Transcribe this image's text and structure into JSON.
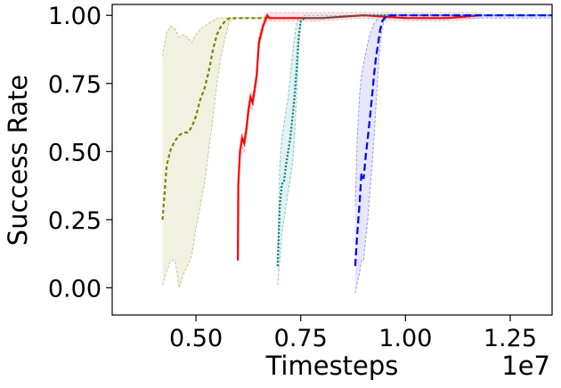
{
  "chart_data": {
    "type": "line",
    "xlabel": "Timesteps",
    "ylabel": "Success Rate",
    "x_scale_label": "1e7",
    "xlim": [
      0.3,
      1.35
    ],
    "ylim": [
      -0.1,
      1.04
    ],
    "x_ticks": [
      0.5,
      0.75,
      1.0,
      1.25
    ],
    "x_tick_labels": [
      "0.50",
      "0.75",
      "1.00",
      "1.25"
    ],
    "y_ticks": [
      0.0,
      0.25,
      0.5,
      0.75,
      1.0
    ],
    "y_tick_labels": [
      "0.00",
      "0.25",
      "0.50",
      "0.75",
      "1.00"
    ],
    "grid": false,
    "series": [
      {
        "color": "#808000",
        "fill": "#efefdc",
        "band_color": "#b8b870",
        "dash": "4,3",
        "x": [
          0.42,
          0.43,
          0.44,
          0.45,
          0.46,
          0.47,
          0.48,
          0.49,
          0.5,
          0.51,
          0.52,
          0.53,
          0.54,
          0.55,
          0.56,
          0.57,
          0.58,
          0.6,
          0.64,
          0.68
        ],
        "y": [
          0.25,
          0.45,
          0.51,
          0.54,
          0.56,
          0.57,
          0.57,
          0.59,
          0.63,
          0.69,
          0.73,
          0.79,
          0.87,
          0.93,
          0.96,
          0.98,
          0.99,
          0.99,
          0.99,
          0.99
        ],
        "low": [
          0.01,
          0.06,
          0.1,
          0.1,
          0.0,
          0.05,
          0.08,
          0.12,
          0.22,
          0.3,
          0.38,
          0.5,
          0.62,
          0.75,
          0.85,
          0.92,
          0.98,
          0.99,
          0.99,
          0.99
        ],
        "high": [
          0.85,
          0.94,
          0.96,
          0.95,
          0.92,
          0.93,
          0.92,
          0.9,
          0.93,
          0.95,
          0.96,
          0.97,
          0.98,
          0.99,
          0.99,
          0.99,
          0.99,
          0.99,
          0.99,
          0.99
        ]
      },
      {
        "color": "#ff0000",
        "fill": "#fde2e2",
        "band_color": "#f4a0a0",
        "dash": "",
        "x": [
          0.6,
          0.601,
          0.605,
          0.61,
          0.615,
          0.62,
          0.625,
          0.63,
          0.635,
          0.64,
          0.645,
          0.65,
          0.655,
          0.66,
          0.665,
          0.67,
          0.675,
          0.68,
          0.7,
          0.75,
          0.8,
          0.9,
          1.0,
          1.1,
          1.18
        ],
        "y": [
          0.1,
          0.38,
          0.5,
          0.55,
          0.53,
          0.58,
          0.65,
          0.7,
          0.68,
          0.73,
          0.78,
          0.9,
          0.93,
          0.96,
          0.98,
          1.0,
          0.99,
          0.99,
          0.99,
          0.99,
          0.99,
          1.0,
          0.99,
          0.99,
          1.0
        ],
        "low": [
          0.1,
          0.36,
          0.48,
          0.52,
          0.5,
          0.55,
          0.62,
          0.67,
          0.65,
          0.7,
          0.75,
          0.87,
          0.91,
          0.95,
          0.97,
          0.98,
          0.98,
          0.98,
          0.98,
          0.98,
          0.98,
          0.99,
          0.98,
          0.98,
          0.99
        ],
        "high": [
          0.1,
          0.4,
          0.52,
          0.57,
          0.55,
          0.6,
          0.67,
          0.72,
          0.7,
          0.75,
          0.8,
          0.92,
          0.95,
          0.98,
          1.0,
          1.01,
          1.01,
          1.01,
          1.01,
          1.01,
          1.01,
          1.01,
          1.01,
          1.01,
          1.01
        ]
      },
      {
        "color": "#008080",
        "fill": "#dcf0ee",
        "band_color": "#70b8b8",
        "dash": "2,2",
        "x": [
          0.695,
          0.7,
          0.705,
          0.71,
          0.715,
          0.72,
          0.725,
          0.73,
          0.735,
          0.74,
          0.745,
          0.75,
          0.76,
          0.8,
          0.9,
          1.0,
          1.1,
          1.2,
          1.3,
          1.35
        ],
        "y": [
          0.08,
          0.3,
          0.38,
          0.39,
          0.45,
          0.5,
          0.55,
          0.62,
          0.7,
          0.8,
          0.92,
          0.98,
          0.99,
          0.99,
          1.0,
          1.0,
          1.0,
          1.0,
          1.0,
          1.0
        ],
        "low": [
          0.01,
          0.1,
          0.2,
          0.25,
          0.3,
          0.35,
          0.4,
          0.45,
          0.55,
          0.7,
          0.88,
          0.97,
          0.99,
          0.99,
          1.0,
          1.0,
          1.0,
          1.0,
          1.0,
          1.0
        ],
        "high": [
          0.1,
          0.45,
          0.55,
          0.6,
          0.65,
          0.7,
          0.78,
          0.85,
          0.92,
          0.97,
          0.99,
          0.99,
          1.0,
          1.0,
          1.0,
          1.0,
          1.0,
          1.0,
          1.0,
          1.0
        ]
      },
      {
        "color": "#0000ff",
        "fill": "#e2e2fb",
        "band_color": "#8080ff",
        "dash": "8,4",
        "x": [
          0.88,
          0.885,
          0.89,
          0.895,
          0.9,
          0.905,
          0.91,
          0.915,
          0.92,
          0.925,
          0.93,
          0.935,
          0.94,
          0.945,
          0.95,
          0.96,
          1.0,
          1.05,
          1.1,
          1.15,
          1.2,
          1.25,
          1.3,
          1.35
        ],
        "y": [
          0.08,
          0.2,
          0.3,
          0.42,
          0.4,
          0.48,
          0.55,
          0.62,
          0.7,
          0.78,
          0.85,
          0.9,
          0.95,
          0.98,
          0.99,
          1.0,
          1.0,
          1.0,
          1.0,
          1.0,
          1.0,
          1.0,
          1.0,
          1.0
        ],
        "low": [
          -0.02,
          0.02,
          0.05,
          0.1,
          0.1,
          0.18,
          0.25,
          0.35,
          0.45,
          0.55,
          0.68,
          0.8,
          0.9,
          0.96,
          0.98,
          0.99,
          0.99,
          0.99,
          0.99,
          0.99,
          0.99,
          0.99,
          0.99,
          0.99
        ],
        "high": [
          0.3,
          0.55,
          0.7,
          0.78,
          0.82,
          0.86,
          0.9,
          0.93,
          0.95,
          0.97,
          0.98,
          0.99,
          1.0,
          1.0,
          1.0,
          1.0,
          1.0,
          1.0,
          1.0,
          1.0,
          1.0,
          1.0,
          1.0,
          1.0
        ]
      }
    ]
  }
}
